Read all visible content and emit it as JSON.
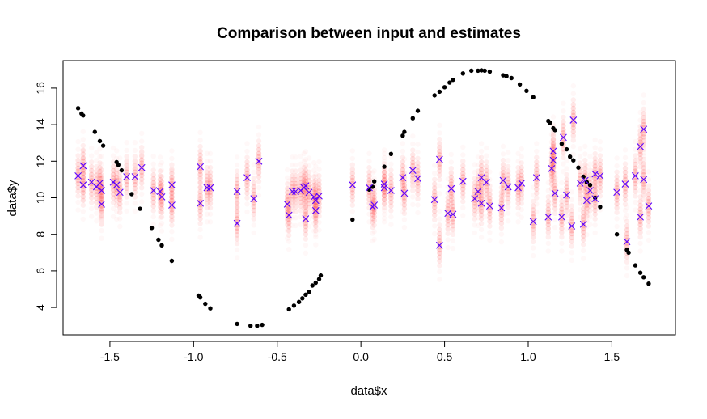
{
  "chart_data": {
    "type": "scatter",
    "title": "Comparison between input and estimates",
    "xlabel": "data$x",
    "ylabel": "data$y",
    "xlim": [
      -1.78,
      1.88
    ],
    "ylim": [
      2.5,
      17.5
    ],
    "xticks": [
      -1.5,
      -1.0,
      -0.5,
      0.0,
      0.5,
      1.0,
      1.5
    ],
    "xtick_labels": [
      "-1.5",
      "-1.0",
      "-0.5",
      "0.0",
      "0.5",
      "1.0",
      "1.5"
    ],
    "yticks": [
      4,
      6,
      8,
      10,
      12,
      14,
      16
    ],
    "ytick_labels": [
      "4",
      "6",
      "8",
      "10",
      "12",
      "14",
      "16"
    ],
    "grid": false,
    "legend": "none",
    "colors": {
      "input": "#000000",
      "estimate": "#5a00ff",
      "spread": "#ff2a2a"
    },
    "input_points": [
      [
        -1.69,
        14.9
      ],
      [
        -1.67,
        14.6
      ],
      [
        -1.66,
        14.5
      ],
      [
        -1.59,
        13.6
      ],
      [
        -1.56,
        13.1
      ],
      [
        -1.54,
        12.85
      ],
      [
        -1.46,
        11.95
      ],
      [
        -1.45,
        11.8
      ],
      [
        -1.43,
        11.5
      ],
      [
        -1.37,
        10.2
      ],
      [
        -1.32,
        9.4
      ],
      [
        -1.25,
        8.35
      ],
      [
        -1.21,
        7.7
      ],
      [
        -1.19,
        7.4
      ],
      [
        -1.13,
        6.55
      ],
      [
        -0.97,
        4.65
      ],
      [
        -0.96,
        4.55
      ],
      [
        -0.93,
        4.2
      ],
      [
        -0.9,
        3.95
      ],
      [
        -0.74,
        3.1
      ],
      [
        -0.66,
        3.0
      ],
      [
        -0.62,
        3.0
      ],
      [
        -0.59,
        3.05
      ],
      [
        -0.43,
        3.9
      ],
      [
        -0.4,
        4.1
      ],
      [
        -0.37,
        4.3
      ],
      [
        -0.35,
        4.5
      ],
      [
        -0.33,
        4.7
      ],
      [
        -0.31,
        4.85
      ],
      [
        -0.29,
        5.2
      ],
      [
        -0.27,
        5.35
      ],
      [
        -0.25,
        5.55
      ],
      [
        -0.24,
        5.75
      ],
      [
        -0.05,
        8.8
      ],
      [
        0.05,
        10.45
      ],
      [
        0.07,
        10.6
      ],
      [
        0.08,
        10.9
      ],
      [
        0.14,
        11.7
      ],
      [
        0.18,
        12.4
      ],
      [
        0.25,
        13.4
      ],
      [
        0.26,
        13.6
      ],
      [
        0.31,
        14.35
      ],
      [
        0.34,
        14.75
      ],
      [
        0.44,
        15.6
      ],
      [
        0.47,
        15.8
      ],
      [
        0.5,
        16.05
      ],
      [
        0.53,
        16.3
      ],
      [
        0.55,
        16.45
      ],
      [
        0.61,
        16.8
      ],
      [
        0.66,
        16.95
      ],
      [
        0.7,
        16.95
      ],
      [
        0.72,
        16.97
      ],
      [
        0.74,
        16.95
      ],
      [
        0.77,
        16.9
      ],
      [
        0.85,
        16.7
      ],
      [
        0.87,
        16.65
      ],
      [
        0.9,
        16.55
      ],
      [
        0.95,
        16.2
      ],
      [
        0.99,
        15.85
      ],
      [
        1.03,
        15.5
      ],
      [
        1.12,
        14.2
      ],
      [
        1.13,
        14.1
      ],
      [
        1.15,
        13.8
      ],
      [
        1.16,
        13.7
      ],
      [
        1.2,
        12.95
      ],
      [
        1.23,
        12.65
      ],
      [
        1.25,
        12.25
      ],
      [
        1.27,
        12.05
      ],
      [
        1.3,
        11.65
      ],
      [
        1.33,
        11.15
      ],
      [
        1.35,
        10.85
      ],
      [
        1.37,
        10.7
      ],
      [
        1.4,
        10.0
      ],
      [
        1.43,
        9.5
      ],
      [
        1.53,
        8.0
      ],
      [
        1.59,
        7.15
      ],
      [
        1.6,
        7.0
      ],
      [
        1.64,
        6.3
      ],
      [
        1.67,
        5.9
      ],
      [
        1.69,
        5.65
      ],
      [
        1.72,
        5.3
      ]
    ],
    "estimates": [
      [
        -1.69,
        11.2
      ],
      [
        -1.66,
        11.75
      ],
      [
        -1.66,
        10.7
      ],
      [
        -1.61,
        10.85
      ],
      [
        -1.58,
        10.6
      ],
      [
        -1.56,
        10.8
      ],
      [
        -1.55,
        9.65
      ],
      [
        -1.55,
        10.4
      ],
      [
        -1.48,
        10.85
      ],
      [
        -1.46,
        10.7
      ],
      [
        -1.44,
        10.3
      ],
      [
        -1.4,
        11.15
      ],
      [
        -1.35,
        11.15
      ],
      [
        -1.31,
        11.65
      ],
      [
        -1.24,
        10.4
      ],
      [
        -1.2,
        10.35
      ],
      [
        -1.19,
        10.05
      ],
      [
        -1.13,
        10.7
      ],
      [
        -1.13,
        9.6
      ],
      [
        -0.96,
        11.7
      ],
      [
        -0.96,
        9.7
      ],
      [
        -0.92,
        10.55
      ],
      [
        -0.9,
        10.55
      ],
      [
        -0.74,
        10.35
      ],
      [
        -0.74,
        8.6
      ],
      [
        -0.68,
        11.1
      ],
      [
        -0.64,
        9.95
      ],
      [
        -0.61,
        12.0
      ],
      [
        -0.44,
        9.65
      ],
      [
        -0.43,
        9.05
      ],
      [
        -0.41,
        10.35
      ],
      [
        -0.39,
        10.35
      ],
      [
        -0.36,
        10.4
      ],
      [
        -0.34,
        10.55
      ],
      [
        -0.33,
        8.85
      ],
      [
        -0.33,
        10.65
      ],
      [
        -0.31,
        10.3
      ],
      [
        -0.28,
        10.05
      ],
      [
        -0.27,
        9.85
      ],
      [
        -0.27,
        9.3
      ],
      [
        -0.25,
        10.1
      ],
      [
        -0.05,
        10.7
      ],
      [
        0.05,
        10.55
      ],
      [
        0.07,
        9.5
      ],
      [
        0.08,
        9.6
      ],
      [
        0.14,
        10.75
      ],
      [
        0.14,
        10.55
      ],
      [
        0.18,
        10.4
      ],
      [
        0.25,
        11.1
      ],
      [
        0.26,
        10.25
      ],
      [
        0.31,
        11.5
      ],
      [
        0.34,
        11.05
      ],
      [
        0.44,
        9.9
      ],
      [
        0.47,
        7.4
      ],
      [
        0.47,
        12.1
      ],
      [
        0.52,
        9.15
      ],
      [
        0.54,
        10.5
      ],
      [
        0.55,
        9.1
      ],
      [
        0.61,
        10.9
      ],
      [
        0.68,
        9.95
      ],
      [
        0.7,
        10.35
      ],
      [
        0.72,
        11.1
      ],
      [
        0.72,
        9.7
      ],
      [
        0.75,
        10.85
      ],
      [
        0.77,
        9.55
      ],
      [
        0.84,
        9.45
      ],
      [
        0.85,
        10.95
      ],
      [
        0.88,
        10.6
      ],
      [
        0.94,
        10.55
      ],
      [
        0.96,
        10.8
      ],
      [
        1.03,
        8.7
      ],
      [
        1.05,
        11.1
      ],
      [
        1.12,
        8.95
      ],
      [
        1.14,
        11.6
      ],
      [
        1.15,
        12.55
      ],
      [
        1.15,
        12.05
      ],
      [
        1.16,
        10.25
      ],
      [
        1.2,
        8.95
      ],
      [
        1.21,
        13.3
      ],
      [
        1.23,
        10.15
      ],
      [
        1.26,
        8.45
      ],
      [
        1.27,
        14.25
      ],
      [
        1.31,
        10.8
      ],
      [
        1.33,
        8.55
      ],
      [
        1.34,
        10.95
      ],
      [
        1.35,
        9.85
      ],
      [
        1.37,
        10.4
      ],
      [
        1.4,
        11.3
      ],
      [
        1.4,
        9.95
      ],
      [
        1.43,
        11.2
      ],
      [
        1.53,
        10.3
      ],
      [
        1.58,
        10.75
      ],
      [
        1.59,
        7.6
      ],
      [
        1.64,
        11.2
      ],
      [
        1.67,
        12.8
      ],
      [
        1.67,
        8.95
      ],
      [
        1.69,
        13.75
      ],
      [
        1.69,
        11.0
      ],
      [
        1.72,
        9.55
      ]
    ]
  }
}
